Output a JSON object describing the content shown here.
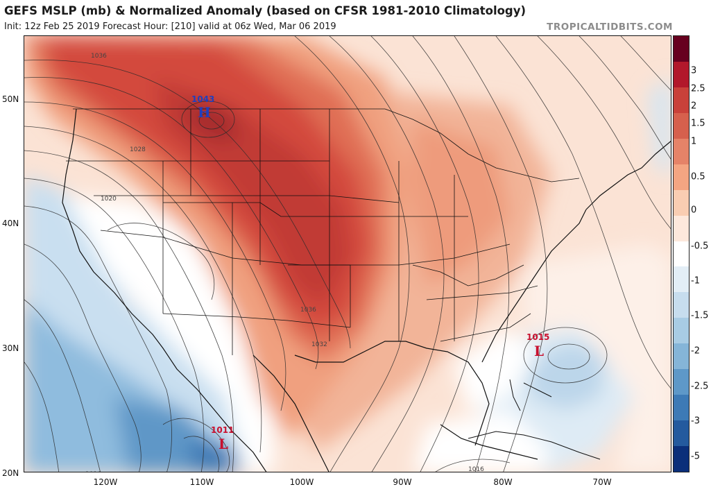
{
  "header": {
    "title": "GEFS MSLP (mb) & Normalized Anomaly (based on CFSR 1981-2010 Climatology)",
    "subtitle": "Init: 12z Feb 25 2019   Forecast Hour: [210]   valid at 06z Wed, Mar 06 2019",
    "brand": "TROPICALTIDBITS.COM"
  },
  "map": {
    "region": "Contiguous United States",
    "lat_labels": [
      "50N",
      "40N",
      "30N",
      "20N"
    ],
    "lon_labels": [
      "120W",
      "110W",
      "100W",
      "90W",
      "80W",
      "70W"
    ],
    "contour_labels": [
      "1036",
      "1028",
      "1020",
      "1036",
      "1032",
      "1016",
      "1016"
    ],
    "pressure_centers": [
      {
        "type": "H",
        "value": "1043",
        "color": "#1f3fbf"
      },
      {
        "type": "L",
        "value": "1015",
        "color": "#c8102e"
      },
      {
        "type": "L",
        "value": "1011",
        "color": "#c8102e"
      }
    ]
  },
  "colorbar": {
    "ticks": [
      "3",
      "2.5",
      "2",
      "1.5",
      "1",
      "0.5",
      "0",
      "-0.5",
      "-1",
      "-1.5",
      "-2",
      "-2.5",
      "-3",
      "-5"
    ],
    "colors": [
      "#67001f",
      "#b2182b",
      "#c9413a",
      "#d6604d",
      "#e58368",
      "#f4a582",
      "#f9cdb2",
      "#fde8dc",
      "#ffffff",
      "#e3eef6",
      "#c7ddee",
      "#a8cce4",
      "#85b5d8",
      "#5e98c8",
      "#3d7ab6",
      "#245a9e",
      "#0b2f7a"
    ]
  }
}
